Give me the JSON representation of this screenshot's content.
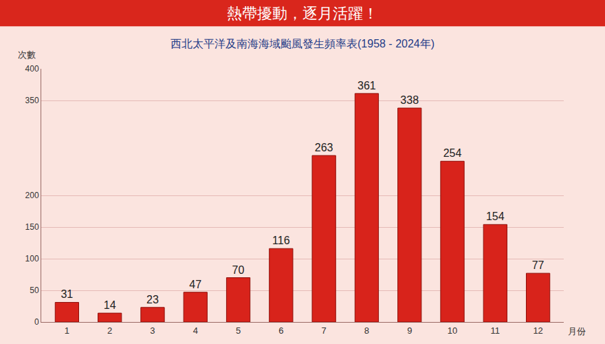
{
  "chart_data": {
    "type": "bar",
    "title": "熱帶擾動，逐月活躍！",
    "subtitle": "西北太平洋及南海海域颱風發生頻率表(1958 - 2024年)",
    "y_label": "次數",
    "x_label": "月份",
    "categories": [
      "1",
      "2",
      "3",
      "4",
      "5",
      "6",
      "7",
      "8",
      "9",
      "10",
      "11",
      "12"
    ],
    "values": [
      31,
      14,
      23,
      47,
      70,
      116,
      263,
      361,
      338,
      254,
      154,
      77
    ],
    "color": "#d8231b",
    "ylim": [
      0,
      400
    ],
    "yticks": [
      0,
      50,
      100,
      150,
      200,
      350,
      400
    ],
    "grid": true,
    "data_labels": true
  }
}
